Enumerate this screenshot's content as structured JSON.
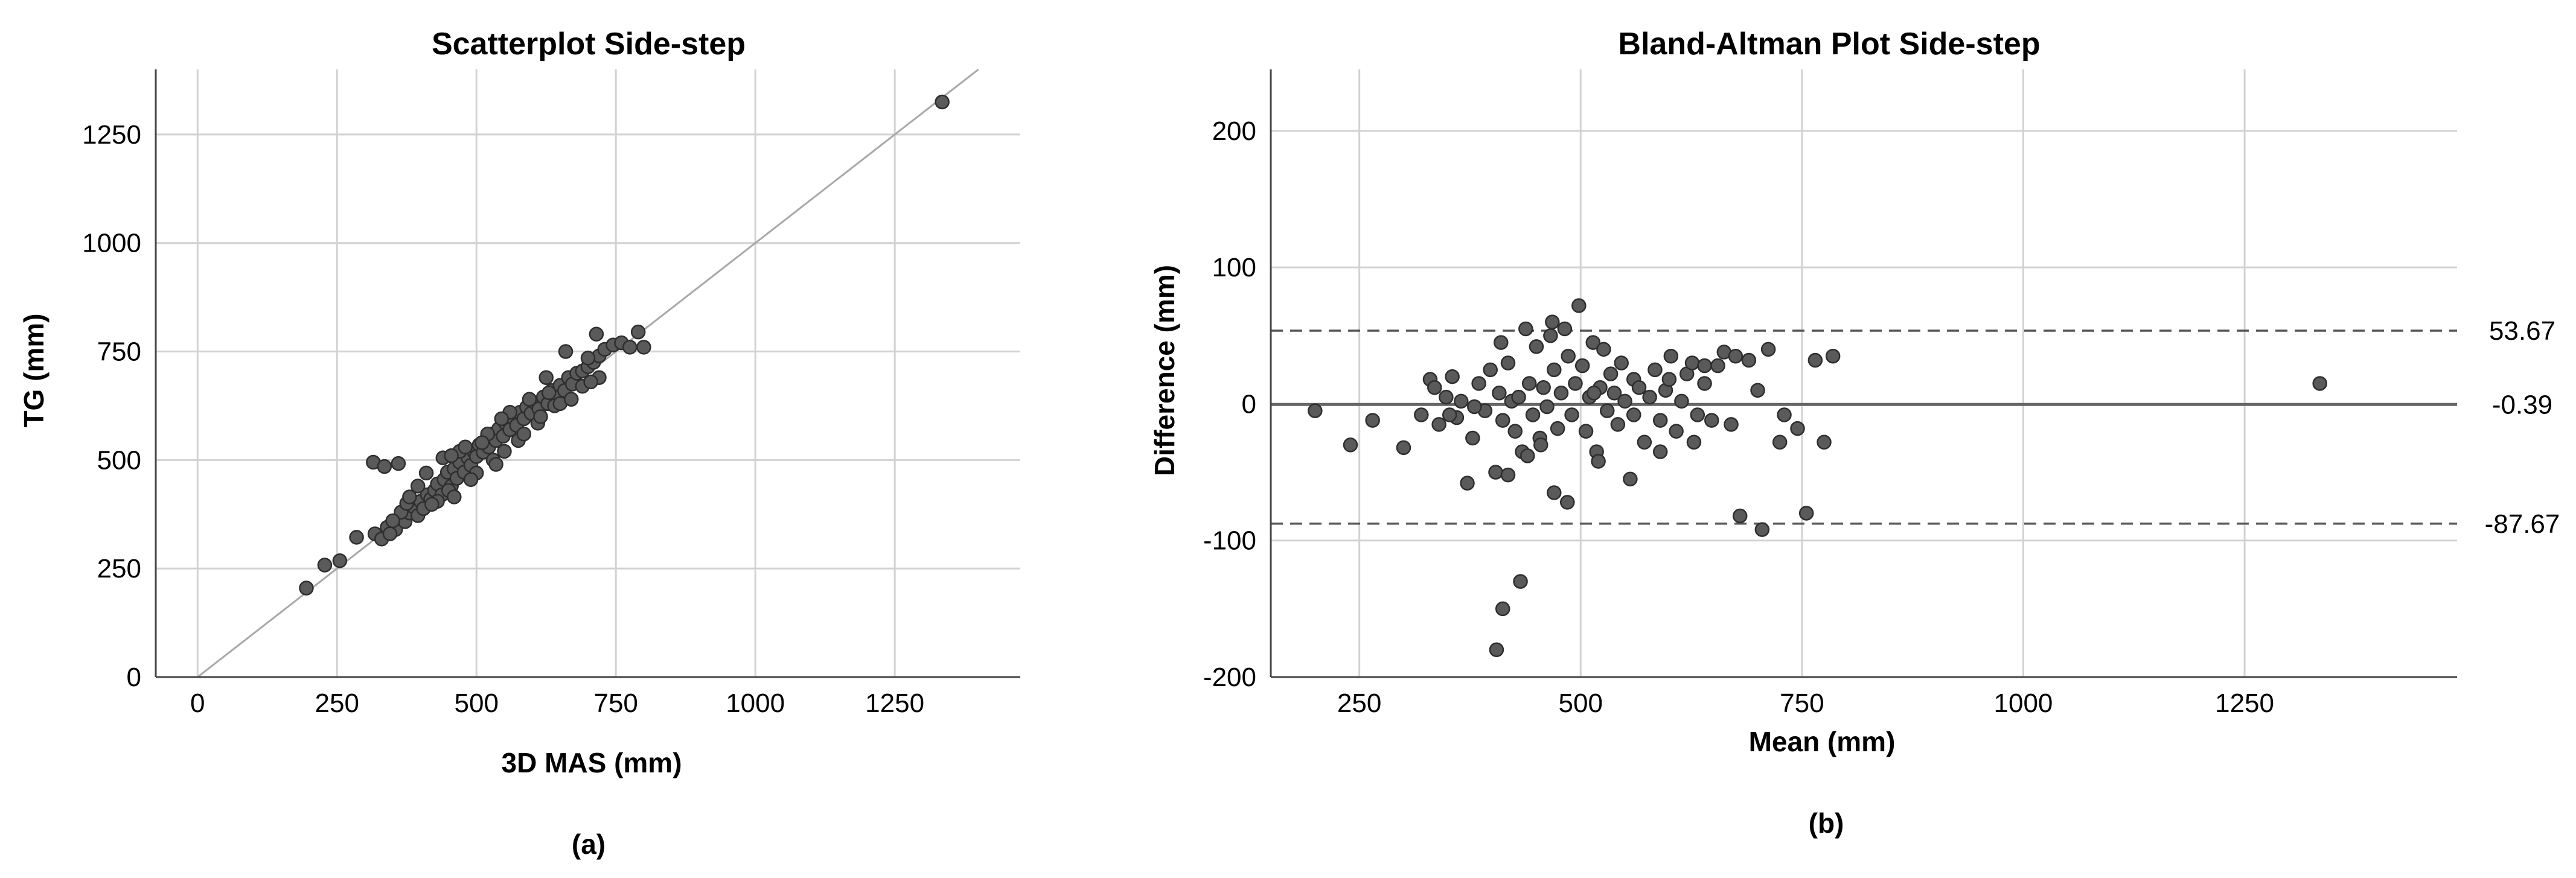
{
  "panels": [
    {
      "caption": "(a)"
    },
    {
      "caption": "(b)"
    }
  ],
  "chart_data": [
    {
      "type": "scatter",
      "title": "Scatterplot Side-step",
      "xlabel": "3D MAS (mm)",
      "ylabel": "TG (mm)",
      "xlim": [
        -75,
        1475
      ],
      "ylim": [
        0,
        1400
      ],
      "xticks": [
        0,
        250,
        500,
        750,
        1000,
        1250
      ],
      "yticks": [
        0,
        250,
        500,
        750,
        1000,
        1250
      ],
      "grid": true,
      "reference_line": {
        "type": "identity",
        "slope": 1,
        "intercept": 0,
        "color": "#a8a8a8"
      },
      "point_color": "#5a5a5a",
      "points": [
        [
          195,
          205
        ],
        [
          228,
          258
        ],
        [
          255,
          268
        ],
        [
          285,
          322
        ],
        [
          315,
          495
        ],
        [
          335,
          485
        ],
        [
          360,
          492
        ],
        [
          318,
          330
        ],
        [
          330,
          318
        ],
        [
          340,
          345
        ],
        [
          355,
          340
        ],
        [
          362,
          365
        ],
        [
          372,
          358
        ],
        [
          380,
          378
        ],
        [
          388,
          392
        ],
        [
          395,
          372
        ],
        [
          400,
          405
        ],
        [
          405,
          388
        ],
        [
          412,
          420
        ],
        [
          418,
          410
        ],
        [
          425,
          430
        ],
        [
          430,
          445
        ],
        [
          438,
          420
        ],
        [
          442,
          455
        ],
        [
          448,
          472
        ],
        [
          455,
          440
        ],
        [
          460,
          480
        ],
        [
          465,
          458
        ],
        [
          470,
          495
        ],
        [
          478,
          472
        ],
        [
          485,
          505
        ],
        [
          490,
          488
        ],
        [
          495,
          520
        ],
        [
          500,
          508
        ],
        [
          505,
          535
        ],
        [
          512,
          518
        ],
        [
          518,
          548
        ],
        [
          522,
          530
        ],
        [
          528,
          560
        ],
        [
          535,
          545
        ],
        [
          540,
          572
        ],
        [
          548,
          555
        ],
        [
          552,
          585
        ],
        [
          560,
          570
        ],
        [
          565,
          598
        ],
        [
          572,
          580
        ],
        [
          578,
          610
        ],
        [
          585,
          595
        ],
        [
          590,
          622
        ],
        [
          598,
          608
        ],
        [
          605,
          632
        ],
        [
          612,
          618
        ],
        [
          620,
          645
        ],
        [
          628,
          630
        ],
        [
          635,
          660
        ],
        [
          642,
          645
        ],
        [
          650,
          672
        ],
        [
          658,
          660
        ],
        [
          665,
          690
        ],
        [
          672,
          675
        ],
        [
          680,
          700
        ],
        [
          690,
          705
        ],
        [
          700,
          715
        ],
        [
          710,
          725
        ],
        [
          720,
          740
        ],
        [
          730,
          755
        ],
        [
          745,
          765
        ],
        [
          760,
          770
        ],
        [
          775,
          760
        ],
        [
          790,
          795
        ],
        [
          800,
          760
        ],
        [
          660,
          750
        ],
        [
          625,
          690
        ],
        [
          560,
          610
        ],
        [
          520,
          560
        ],
        [
          470,
          520
        ],
        [
          440,
          505
        ],
        [
          410,
          470
        ],
        [
          395,
          440
        ],
        [
          365,
          380
        ],
        [
          350,
          360
        ],
        [
          345,
          330
        ],
        [
          375,
          400
        ],
        [
          455,
          510
        ],
        [
          480,
          530
        ],
        [
          530,
          500
        ],
        [
          575,
          545
        ],
        [
          610,
          585
        ],
        [
          640,
          625
        ],
        [
          700,
          735
        ],
        [
          715,
          790
        ],
        [
          450,
          430
        ],
        [
          460,
          415
        ],
        [
          500,
          470
        ],
        [
          535,
          490
        ],
        [
          550,
          520
        ],
        [
          585,
          560
        ],
        [
          615,
          600
        ],
        [
          650,
          630
        ],
        [
          690,
          670
        ],
        [
          720,
          690
        ],
        [
          380,
          415
        ],
        [
          430,
          405
        ],
        [
          510,
          540
        ],
        [
          545,
          595
        ],
        [
          595,
          640
        ],
        [
          630,
          655
        ],
        [
          670,
          640
        ],
        [
          705,
          680
        ],
        [
          490,
          455
        ],
        [
          420,
          398
        ],
        [
          1335,
          1325
        ]
      ]
    },
    {
      "type": "scatter",
      "title": "Bland-Altman Plot Side-step",
      "xlabel": "Mean (mm)",
      "ylabel": "Difference (mm)",
      "xlim": [
        150,
        1490
      ],
      "ylim": [
        -200,
        245
      ],
      "xticks": [
        250,
        500,
        750,
        1000,
        1250
      ],
      "yticks": [
        -200,
        -100,
        0,
        100,
        200
      ],
      "grid": true,
      "mean_line": {
        "value": -0.39,
        "label": "-0.39",
        "style": "solid",
        "color": "#666666"
      },
      "limits_of_agreement": [
        {
          "value": 53.67,
          "label": "53.67",
          "style": "dashed"
        },
        {
          "value": -87.67,
          "label": "-87.67",
          "style": "dashed"
        }
      ],
      "point_color": "#5a5a5a",
      "points": [
        [
          200,
          -5
        ],
        [
          240,
          -30
        ],
        [
          265,
          -12
        ],
        [
          300,
          -32
        ],
        [
          320,
          -8
        ],
        [
          330,
          18
        ],
        [
          335,
          12
        ],
        [
          340,
          -15
        ],
        [
          348,
          5
        ],
        [
          355,
          20
        ],
        [
          360,
          -10
        ],
        [
          365,
          2
        ],
        [
          372,
          -58
        ],
        [
          378,
          -25
        ],
        [
          385,
          15
        ],
        [
          392,
          -5
        ],
        [
          398,
          25
        ],
        [
          404,
          -50
        ],
        [
          408,
          8
        ],
        [
          412,
          -12
        ],
        [
          418,
          30
        ],
        [
          422,
          2
        ],
        [
          426,
          -20
        ],
        [
          430,
          5
        ],
        [
          434,
          -35
        ],
        [
          438,
          55
        ],
        [
          442,
          15
        ],
        [
          446,
          -8
        ],
        [
          450,
          42
        ],
        [
          454,
          -25
        ],
        [
          458,
          12
        ],
        [
          462,
          -2
        ],
        [
          466,
          50
        ],
        [
          470,
          25
        ],
        [
          474,
          -18
        ],
        [
          478,
          8
        ],
        [
          482,
          55
        ],
        [
          486,
          35
        ],
        [
          490,
          -8
        ],
        [
          494,
          15
        ],
        [
          498,
          72
        ],
        [
          502,
          28
        ],
        [
          506,
          -20
        ],
        [
          510,
          5
        ],
        [
          514,
          45
        ],
        [
          518,
          -35
        ],
        [
          522,
          12
        ],
        [
          526,
          40
        ],
        [
          530,
          -5
        ],
        [
          534,
          22
        ],
        [
          538,
          8
        ],
        [
          542,
          -15
        ],
        [
          546,
          30
        ],
        [
          550,
          2
        ],
        [
          556,
          -55
        ],
        [
          560,
          18
        ],
        [
          566,
          12
        ],
        [
          572,
          -28
        ],
        [
          578,
          5
        ],
        [
          584,
          25
        ],
        [
          590,
          -12
        ],
        [
          596,
          10
        ],
        [
          602,
          35
        ],
        [
          608,
          -20
        ],
        [
          614,
          2
        ],
        [
          620,
          22
        ],
        [
          626,
          30
        ],
        [
          632,
          -8
        ],
        [
          640,
          15
        ],
        [
          648,
          -12
        ],
        [
          655,
          28
        ],
        [
          662,
          38
        ],
        [
          670,
          -15
        ],
        [
          675,
          35
        ],
        [
          680,
          -82
        ],
        [
          690,
          32
        ],
        [
          700,
          10
        ],
        [
          705,
          -92
        ],
        [
          712,
          40
        ],
        [
          725,
          -28
        ],
        [
          730,
          -8
        ],
        [
          745,
          -18
        ],
        [
          755,
          -80
        ],
        [
          765,
          32
        ],
        [
          775,
          -28
        ],
        [
          785,
          35
        ],
        [
          405,
          -180
        ],
        [
          412,
          -150
        ],
        [
          432,
          -130
        ],
        [
          418,
          -52
        ],
        [
          440,
          -38
        ],
        [
          455,
          -30
        ],
        [
          470,
          -65
        ],
        [
          485,
          -72
        ],
        [
          520,
          -42
        ],
        [
          590,
          -35
        ],
        [
          628,
          -28
        ],
        [
          410,
          45
        ],
        [
          468,
          60
        ],
        [
          515,
          8
        ],
        [
          560,
          -8
        ],
        [
          600,
          18
        ],
        [
          640,
          28
        ],
        [
          380,
          -2
        ],
        [
          352,
          -8
        ],
        [
          1335,
          15
        ]
      ]
    }
  ]
}
